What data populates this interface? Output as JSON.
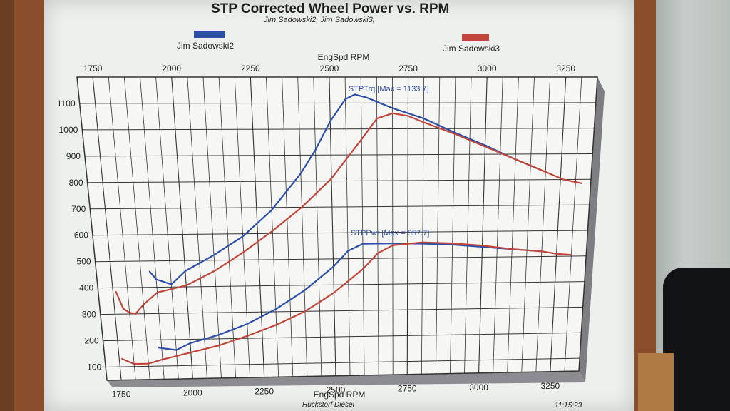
{
  "chart_data": {
    "type": "line",
    "title": "STP Corrected Wheel Power vs. RPM",
    "subtitle": "Jim Sadowski2, Jim Sadowski3,",
    "xlabel": "EngSpd  RPM",
    "xlabel_bottom": "EngSpd  RPM",
    "xlim": [
      1700,
      3350
    ],
    "ylim": [
      50,
      1200
    ],
    "x_ticks": [
      "1750",
      "2000",
      "2250",
      "2500",
      "2750",
      "3000",
      "3250"
    ],
    "y_ticks": [
      "100",
      "200",
      "300",
      "400",
      "500",
      "600",
      "700",
      "800",
      "900",
      "1000",
      "1100"
    ],
    "grid": true,
    "legend": [
      "Jim Sadowski2",
      "Jim Sadowski3"
    ],
    "annotations": [
      {
        "text": "STPTrq [Max = 1133.7]",
        "x": 2560,
        "y": 1145
      },
      {
        "text": "STPPwr [Max = 557.7]",
        "x": 2560,
        "y": 590
      }
    ],
    "series": [
      {
        "name": "Jim Sadowski2",
        "metric": "STPTrq",
        "color": "#2e4fa8",
        "x": [
          1880,
          1900,
          1950,
          2000,
          2100,
          2200,
          2300,
          2400,
          2450,
          2500,
          2550,
          2580,
          2620,
          2700,
          2800,
          2900,
          3000,
          3100,
          3200
        ],
        "y": [
          460,
          430,
          410,
          460,
          520,
          590,
          690,
          830,
          920,
          1030,
          1115,
          1133,
          1120,
          1080,
          1040,
          985,
          935,
          880,
          830
        ]
      },
      {
        "name": "Jim Sadowski3",
        "metric": "STPTrq",
        "color": "#c0463c",
        "x": [
          1760,
          1780,
          1800,
          1820,
          1850,
          1900,
          2000,
          2100,
          2200,
          2300,
          2400,
          2500,
          2600,
          2650,
          2700,
          2750,
          2800,
          2900,
          3000,
          3100,
          3200,
          3260,
          3320
        ],
        "y": [
          385,
          320,
          305,
          300,
          335,
          380,
          405,
          460,
          530,
          610,
          700,
          810,
          960,
          1040,
          1060,
          1050,
          1025,
          980,
          930,
          880,
          830,
          800,
          785
        ]
      },
      {
        "name": "Jim Sadowski2",
        "metric": "STPPwr",
        "color": "#2e4fa8",
        "x": [
          1890,
          1950,
          2000,
          2100,
          2200,
          2300,
          2400,
          2500,
          2550,
          2600,
          2700,
          2800,
          2900,
          3000,
          3100,
          3200
        ],
        "y": [
          170,
          160,
          185,
          215,
          255,
          310,
          380,
          470,
          530,
          557,
          557,
          555,
          550,
          540,
          530,
          520
        ]
      },
      {
        "name": "Jim Sadowski3",
        "metric": "STPPwr",
        "color": "#c0463c",
        "x": [
          1760,
          1800,
          1850,
          1900,
          2000,
          2100,
          2200,
          2300,
          2400,
          2500,
          2600,
          2650,
          2700,
          2800,
          2900,
          3000,
          3100,
          3200,
          3250,
          3300
        ],
        "y": [
          130,
          110,
          110,
          125,
          150,
          175,
          210,
          250,
          300,
          370,
          460,
          520,
          550,
          560,
          555,
          545,
          530,
          520,
          510,
          505
        ]
      }
    ]
  },
  "footer": {
    "company": "Huckstorf Diesel",
    "time": "11:15:23"
  }
}
